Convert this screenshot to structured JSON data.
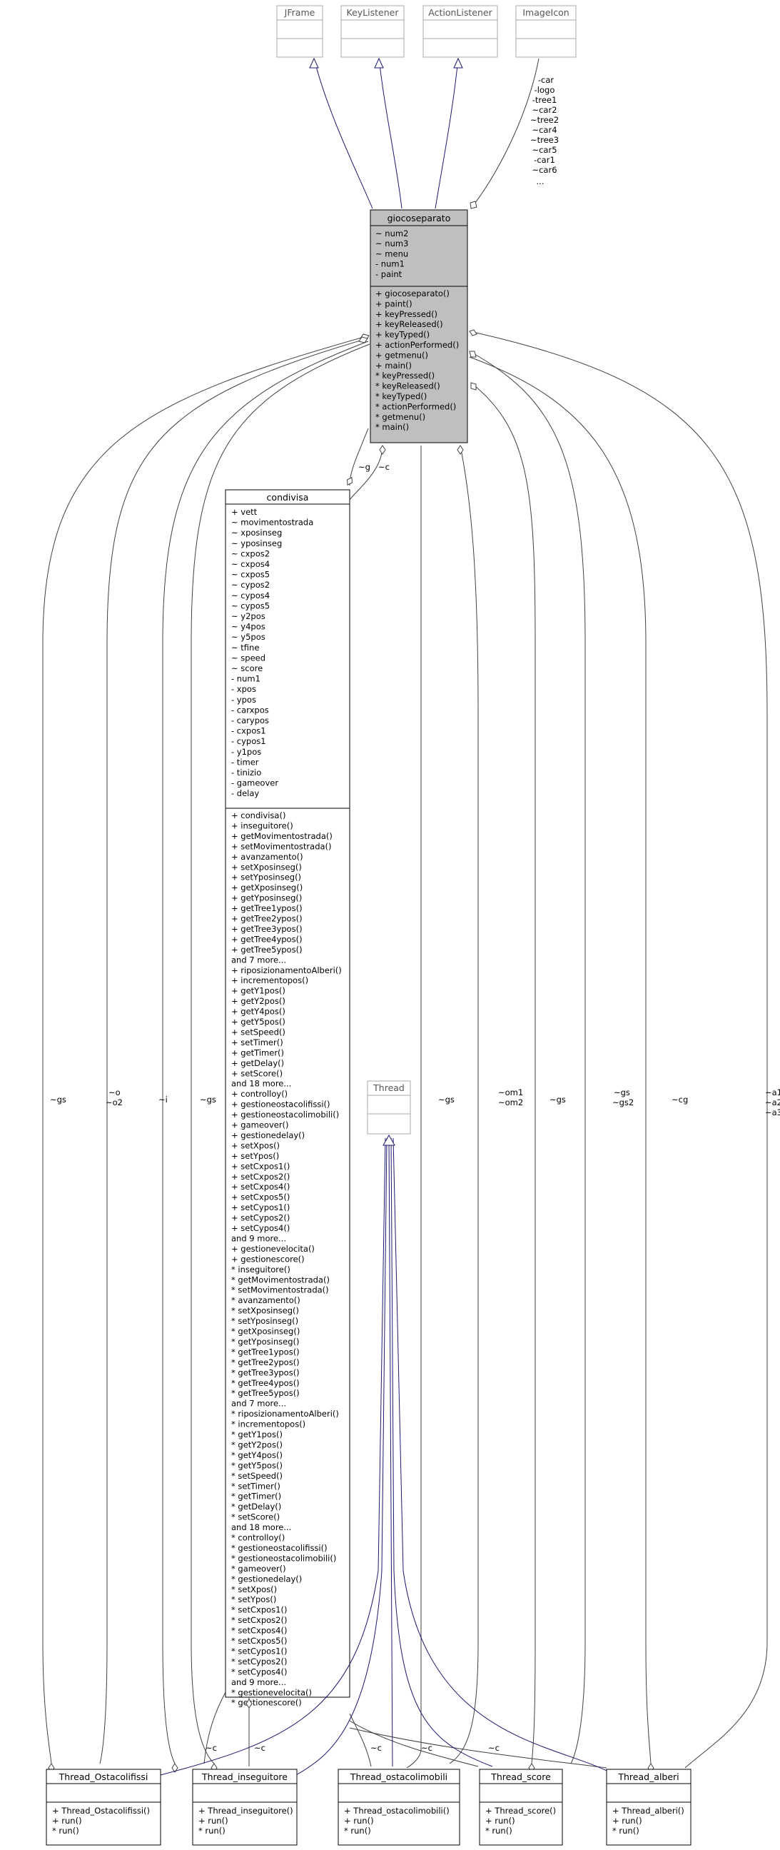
{
  "external_classes": [
    {
      "name": "JFrame"
    },
    {
      "name": "KeyListener"
    },
    {
      "name": "ActionListener"
    },
    {
      "name": "ImageIcon"
    },
    {
      "name": "Thread"
    }
  ],
  "main_class": {
    "name": "gioco separato",
    "attributes": [
      "~ num2",
      "~ num3",
      "~ menu",
      "- num1",
      "- paint"
    ],
    "operations": [
      "+ giocoseparato()",
      "+ paint()",
      "+ keyPressed()",
      "+ keyReleased()",
      "+ keyTyped()",
      "+ actionPerformed()",
      "+ getmenu()",
      "+ main()",
      "* keyPressed()",
      "* keyReleased()",
      "* keyTyped()",
      "* actionPerformed()",
      "* getmenu()",
      "* main()"
    ]
  },
  "imageicon_roles": [
    "-car",
    "-logo",
    "-tree1",
    "~car2",
    "~tree2",
    "~car4",
    "~tree3",
    "~car5",
    "-car1",
    "~car6",
    "..."
  ],
  "condivisa": {
    "name": "condivisa",
    "attributes": [
      "+ vett",
      "~ movimentostrada",
      "~ xposinseg",
      "~ yposinseg",
      "~ cxpos2",
      "~ cxpos4",
      "~ cxpos5",
      "~ cypos2",
      "~ cypos4",
      "~ cypos5",
      "~ y2pos",
      "~ y4pos",
      "~ y5pos",
      "~ tfine",
      "~ speed",
      "~ score",
      "- num1",
      "- xpos",
      "- ypos",
      "- carxpos",
      "- carypos",
      "- cxpos1",
      "- cypos1",
      "- y1pos",
      "- timer",
      "- tinizio",
      "- gameover",
      "- delay"
    ],
    "operations": [
      "+ condivisa()",
      "+ inseguitore()",
      "+ getMovimentostrada()",
      "+ setMovimentostrada()",
      "+ avanzamento()",
      "+ setXposinseg()",
      "+ setYposinseg()",
      "+ getXposinseg()",
      "+ getYposinseg()",
      "+ getTree1ypos()",
      "+ getTree2ypos()",
      "+ getTree3ypos()",
      "+ getTree4ypos()",
      "+ getTree5ypos()",
      "and 7 more...",
      "+ riposizionamentoAlberi()",
      "+ incrementopos()",
      "+ getY1pos()",
      "+ getY2pos()",
      "+ getY4pos()",
      "+ getY5pos()",
      "+ setSpeed()",
      "+ setTimer()",
      "+ getTimer()",
      "+ getDelay()",
      "+ setScore()",
      "and 18 more...",
      "+ controlloy()",
      "+ gestioneostacolifissi()",
      "+ gestioneostacolimobili()",
      "+ gameover()",
      "+ gestionedelay()",
      "+ setXpos()",
      "+ setYpos()",
      "+ setCxpos1()",
      "+ setCxpos2()",
      "+ setCxpos4()",
      "+ setCxpos5()",
      "+ setCypos1()",
      "+ setCypos2()",
      "+ setCypos4()",
      "and 9 more...",
      "+ gestionevelocita()",
      "+ gestionescore()",
      "* inseguitore()",
      "* getMovimentostrada()",
      "* setMovimentostrada()",
      "* avanzamento()",
      "* setXposinseg()",
      "* setYposinseg()",
      "* getXposinseg()",
      "* getYposinseg()",
      "* getTree1ypos()",
      "* getTree2ypos()",
      "* getTree3ypos()",
      "* getTree4ypos()",
      "* getTree5ypos()",
      "and 7 more...",
      "* riposizionamentoAlberi()",
      "* incrementopos()",
      "* getY1pos()",
      "* getY2pos()",
      "* getY4pos()",
      "* getY5pos()",
      "* setSpeed()",
      "* setTimer()",
      "* getTimer()",
      "* getDelay()",
      "* setScore()",
      "and 18 more...",
      "* controlloy()",
      "* gestioneostacolifissi()",
      "* gestioneostacolimobili()",
      "* gameover()",
      "* gestionedelay()",
      "* setXpos()",
      "* setYpos()",
      "* setCxpos1()",
      "* setCxpos2()",
      "* setCxpos4()",
      "* setCxpos5()",
      "* setCypos1()",
      "* setCypos2()",
      "* setCypos4()",
      "and 9 more...",
      "* gestionevelocita()",
      "* gestionescore()"
    ]
  },
  "thread_classes": [
    {
      "name": "Thread_Ostacolifissi",
      "operations": [
        "+ Thread_Ostacolifissi()",
        "+ run()",
        "* run()"
      ]
    },
    {
      "name": "Thread_inseguitore",
      "operations": [
        "+ Thread_inseguitore()",
        "+ run()",
        "* run()"
      ]
    },
    {
      "name": "Thread_ostacolimobili",
      "operations": [
        "+ Thread_ostacolimobili()",
        "+ run()",
        "* run()"
      ]
    },
    {
      "name": "Thread_score",
      "operations": [
        "+ Thread_score()",
        "+ run()",
        "* run()"
      ]
    },
    {
      "name": "Thread_alberi",
      "operations": [
        "+ Thread_alberi()",
        "+ run()",
        "* run()"
      ]
    }
  ],
  "edge_labels": {
    "g": "~g",
    "c": "~c",
    "gs": "~gs",
    "o": "~o",
    "o2": "~o2",
    "i": "~i",
    "om1": "~om1",
    "om2": "~om2",
    "gs2": "~gs2",
    "cg": "~cg",
    "a1": "~a1",
    "a2": "~a2",
    "a3": "~a3"
  }
}
